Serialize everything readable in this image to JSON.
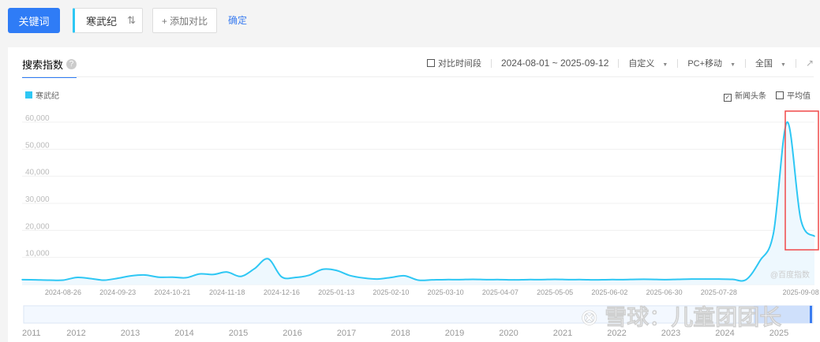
{
  "toolbar": {
    "keyword_button": "关键词",
    "keyword": "寒武纪",
    "sort_icon": "⇅",
    "add_compare": "+ 添加对比",
    "confirm": "确定"
  },
  "panel": {
    "tab": "搜索指数",
    "help_icon": "?",
    "compare_period": "对比时间段",
    "date_range": "2024-08-01 ~ 2025-09-12",
    "custom": "自定义",
    "device": "PC+移动",
    "region": "全国",
    "export_icon": "external-link"
  },
  "legend": {
    "series": "寒武纪",
    "news": "新闻头条",
    "news_checked": true,
    "average": "平均值",
    "average_checked": false
  },
  "watermark": "@百度指数",
  "overlay_watermark": "雪球：儿童团团长",
  "chart_data": {
    "type": "area",
    "x_start": "2024-08-05",
    "x_step_days": 7,
    "series": [
      {
        "name": "寒武纪",
        "color": "#2ec7f4",
        "values": [
          1800,
          1700,
          1600,
          1600,
          2600,
          2200,
          1600,
          2300,
          3200,
          3500,
          2700,
          2700,
          2500,
          3900,
          3700,
          4600,
          3000,
          5800,
          9500,
          2800,
          2600,
          3400,
          5600,
          5200,
          3300,
          2400,
          2000,
          2600,
          3200,
          1600,
          1700,
          1800,
          1800,
          1900,
          1800,
          1800,
          1700,
          1800,
          1800,
          1900,
          1800,
          1800,
          1700,
          1800,
          1800,
          1900,
          1900,
          1800,
          1900,
          2000,
          2000,
          2000,
          1900,
          1800,
          8700,
          19000,
          60000,
          24000,
          17800
        ]
      }
    ],
    "yticks": [
      "10,000",
      "20,000",
      "30,000",
      "40,000",
      "50,000",
      "60,000"
    ],
    "ylim": [
      0,
      60000
    ],
    "xticks": [
      "2024-08-26",
      "2024-09-23",
      "2024-10-21",
      "2024-11-18",
      "2024-12-16",
      "2025-01-13",
      "2025-02-10",
      "2025-03-10",
      "2025-04-07",
      "2025-05-05",
      "2025-06-02",
      "2025-06-30",
      "2025-07-28",
      "2025-09-08"
    ],
    "grid": true,
    "highlight_box_color": "#f04848",
    "minimap_years": [
      "2011",
      "2012",
      "2013",
      "2014",
      "2015",
      "2016",
      "2017",
      "2018",
      "2019",
      "2020",
      "2021",
      "2022",
      "2023",
      "2024",
      "2025"
    ]
  }
}
